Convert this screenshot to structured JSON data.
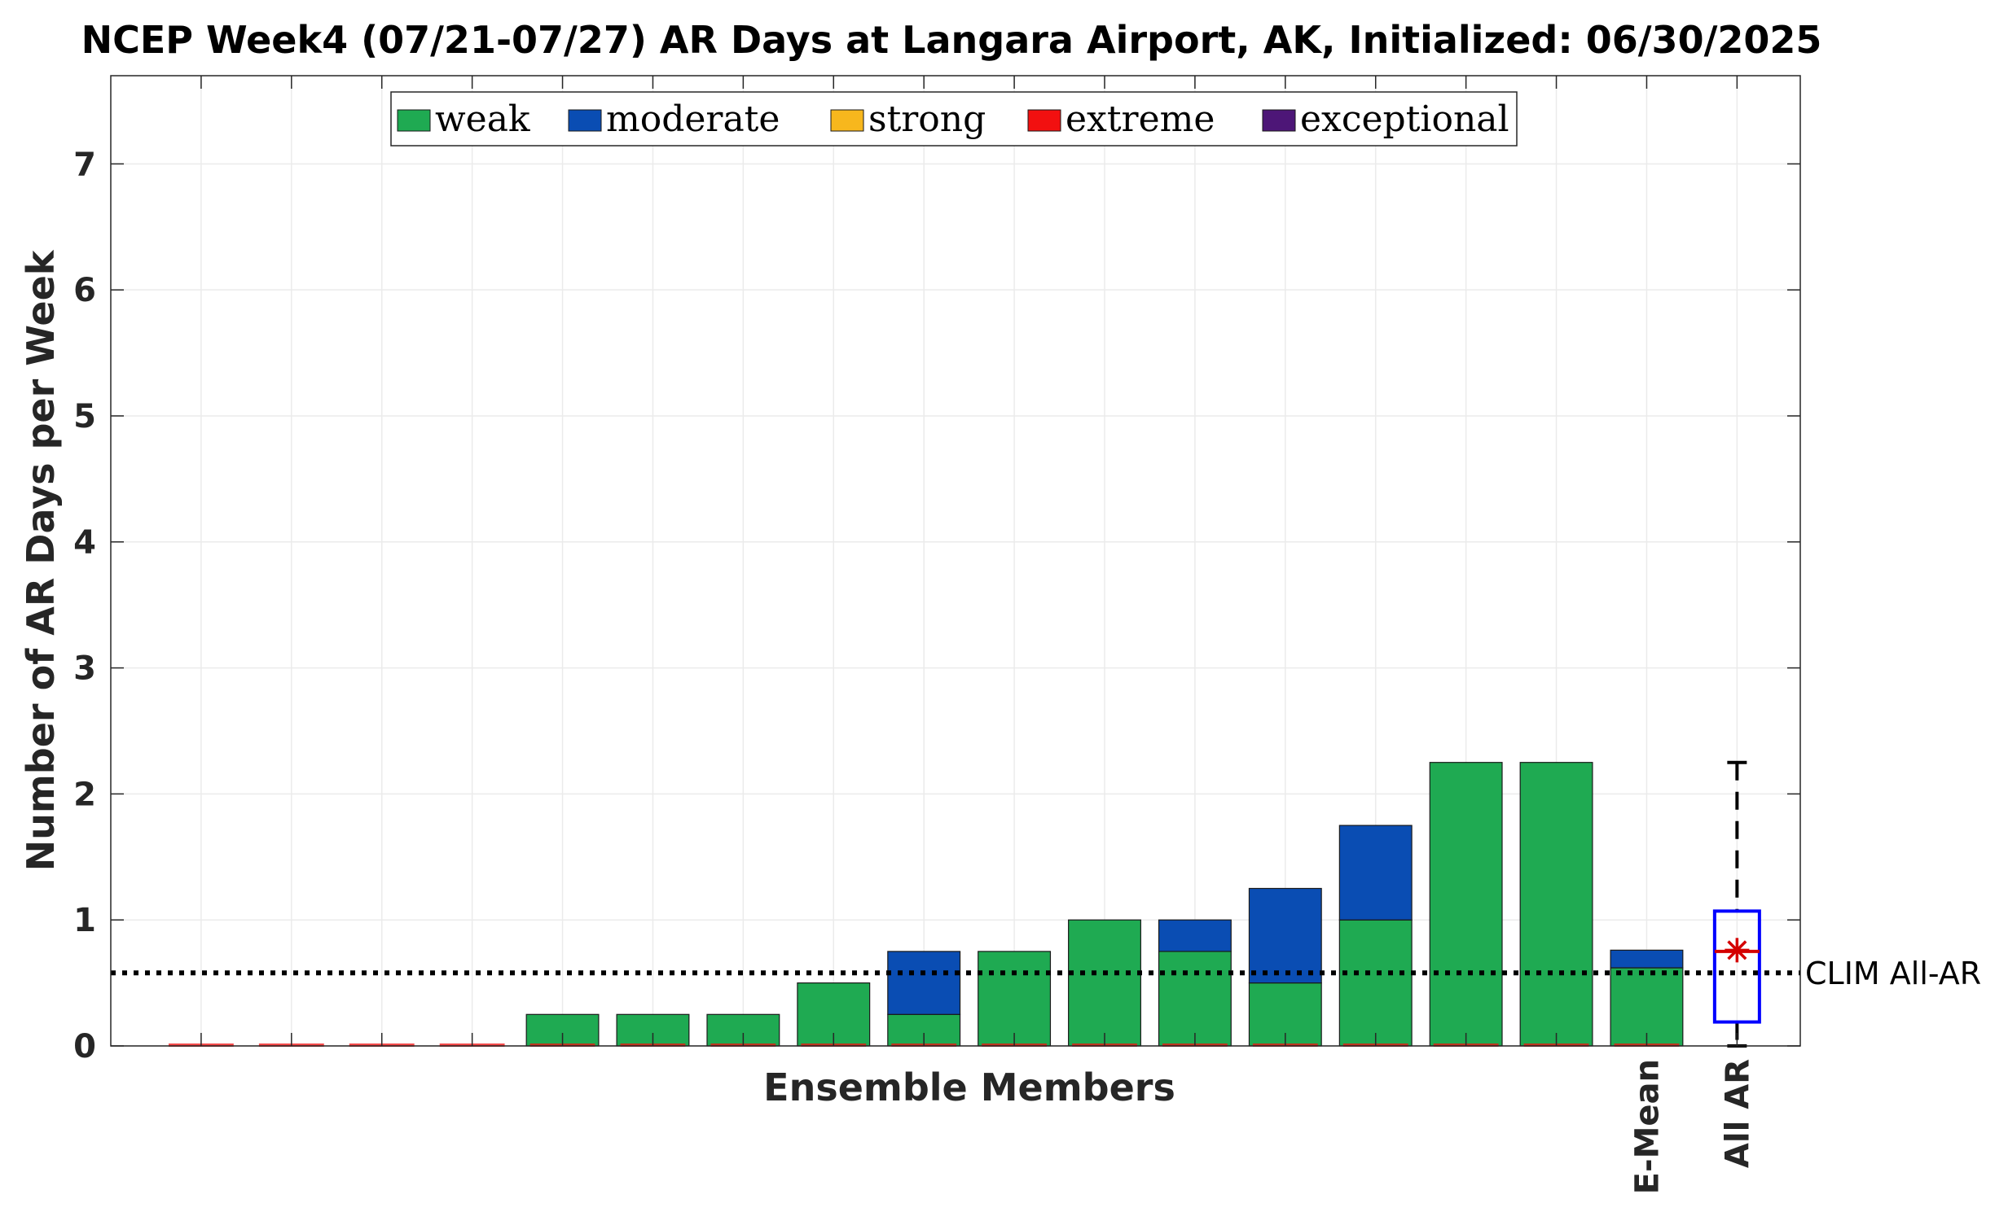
{
  "chart_data": {
    "type": "bar",
    "stacked": true,
    "title": "NCEP Week4 (07/21-07/27) AR Days at Langara Airport, AK, Initialized: 06/30/2025",
    "xlabel": "Ensemble Members",
    "ylabel": "Number of AR Days per Week",
    "ylim": [
      0,
      7.7
    ],
    "yticks": [
      0,
      1,
      2,
      3,
      4,
      5,
      6,
      7
    ],
    "grid": true,
    "legend_placement": "top-center",
    "special_tick_labels": [
      "E-Mean",
      "All AR"
    ],
    "members": 16,
    "series": [
      {
        "name": "weak",
        "color": "#1faa52",
        "values": [
          0,
          0,
          0,
          0,
          0.25,
          0.25,
          0.25,
          0.5,
          0.25,
          0.75,
          1.0,
          0.75,
          0.5,
          1.0,
          2.25,
          2.25,
          0.62
        ]
      },
      {
        "name": "moderate",
        "color": "#0a4db3",
        "values": [
          0,
          0,
          0,
          0,
          0,
          0,
          0,
          0,
          0.5,
          0,
          0,
          0.25,
          0.75,
          0.75,
          0,
          0,
          0.14
        ]
      },
      {
        "name": "strong",
        "color": "#f7b71d",
        "values": [
          0,
          0,
          0,
          0,
          0,
          0,
          0,
          0,
          0,
          0,
          0,
          0,
          0,
          0,
          0,
          0,
          0
        ]
      },
      {
        "name": "extreme",
        "color": "#f21010",
        "values": [
          0,
          0,
          0,
          0,
          0,
          0,
          0,
          0,
          0,
          0,
          0,
          0,
          0,
          0,
          0,
          0,
          0
        ]
      },
      {
        "name": "exceptional",
        "color": "#4d1677",
        "values": [
          0,
          0,
          0,
          0,
          0,
          0,
          0,
          0,
          0,
          0,
          0,
          0,
          0,
          0,
          0,
          0,
          0
        ]
      }
    ],
    "boxplot": {
      "label": "All AR",
      "min": 0,
      "q1": 0.19,
      "median": 0.75,
      "mean": 0.76,
      "q3": 1.07,
      "max": 2.25,
      "box_color": "#0000ff",
      "median_color": "#d40000"
    },
    "climatology": {
      "label": "CLIM All-AR",
      "value": 0.58
    }
  }
}
